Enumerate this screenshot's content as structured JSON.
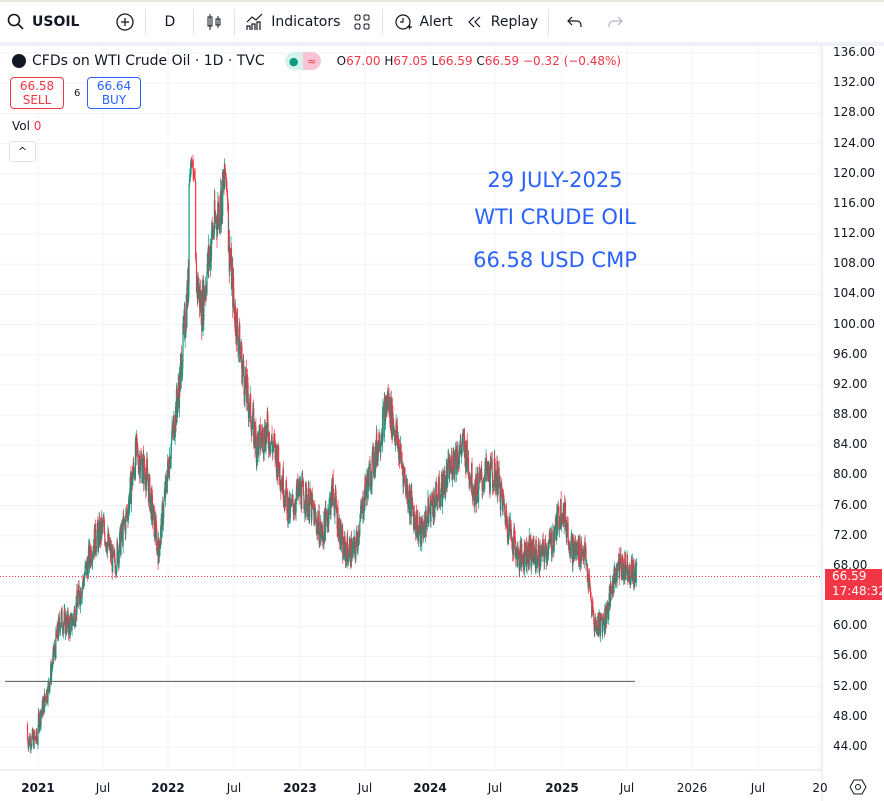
{
  "toolbar": {
    "symbol": "USOIL",
    "interval": "D",
    "indicators": "Indicators",
    "alert": "Alert",
    "replay": "Replay"
  },
  "legend": {
    "title": "CFDs on WTI Crude Oil · 1D · TVC",
    "o_label": "O",
    "o": "67.00",
    "h_label": "H",
    "h": "67.05",
    "l_label": "L",
    "l": "66.59",
    "c_label": "C",
    "c": "66.59",
    "change": "−0.32 (−0.48%)"
  },
  "trade": {
    "sell_price": "66.58",
    "sell_label": "SELL",
    "spread": "6",
    "buy_price": "66.64",
    "buy_label": "BUY"
  },
  "volume": {
    "label": "Vol",
    "value": "0"
  },
  "annotation": {
    "line1": "29 JULY-2025",
    "line2": "WTI CRUDE OIL",
    "line3": "66.58 USD CMP"
  },
  "price_axis": [
    "136.00",
    "132.00",
    "128.00",
    "124.00",
    "120.00",
    "116.00",
    "112.00",
    "108.00",
    "104.00",
    "100.00",
    "96.00",
    "92.00",
    "88.00",
    "84.00",
    "80.00",
    "76.00",
    "72.00",
    "68.00",
    "60.00",
    "56.00",
    "52.00",
    "48.00",
    "44.00"
  ],
  "time_axis": [
    "2021",
    "Jul",
    "2022",
    "Jul",
    "2023",
    "Jul",
    "2024",
    "Jul",
    "2025",
    "Jul",
    "2026",
    "Jul",
    "20"
  ],
  "last_price": {
    "value": "66.59",
    "countdown": "17:48:32"
  },
  "colors": {
    "up": "#089981",
    "down": "#f23645",
    "annotation": "#2962ff"
  },
  "chart_data": {
    "type": "candlestick",
    "ylim": [
      44,
      136
    ],
    "horizontal_line": 52.7,
    "monthly_close": [
      [
        2021.0,
        47
      ],
      [
        2021.08,
        52
      ],
      [
        2021.17,
        61
      ],
      [
        2021.25,
        60
      ],
      [
        2021.33,
        65
      ],
      [
        2021.42,
        71
      ],
      [
        2021.5,
        73
      ],
      [
        2021.58,
        68
      ],
      [
        2021.67,
        74
      ],
      [
        2021.75,
        83
      ],
      [
        2021.83,
        80
      ],
      [
        2021.92,
        70
      ],
      [
        2022.0,
        82
      ],
      [
        2022.08,
        92
      ],
      [
        2022.17,
        110
      ],
      [
        2022.25,
        102
      ],
      [
        2022.33,
        112
      ],
      [
        2022.42,
        118
      ],
      [
        2022.5,
        102
      ],
      [
        2022.58,
        92
      ],
      [
        2022.67,
        84
      ],
      [
        2022.75,
        86
      ],
      [
        2022.83,
        82
      ],
      [
        2022.92,
        75
      ],
      [
        2023.0,
        78
      ],
      [
        2023.08,
        76
      ],
      [
        2023.17,
        72
      ],
      [
        2023.25,
        78
      ],
      [
        2023.33,
        70
      ],
      [
        2023.42,
        70
      ],
      [
        2023.5,
        78
      ],
      [
        2023.58,
        83
      ],
      [
        2023.67,
        90
      ],
      [
        2023.75,
        84
      ],
      [
        2023.83,
        77
      ],
      [
        2023.92,
        72
      ],
      [
        2024.0,
        76
      ],
      [
        2024.08,
        78
      ],
      [
        2024.17,
        82
      ],
      [
        2024.25,
        84
      ],
      [
        2024.33,
        78
      ],
      [
        2024.42,
        80
      ],
      [
        2024.5,
        80
      ],
      [
        2024.58,
        74
      ],
      [
        2024.67,
        69
      ],
      [
        2024.75,
        70
      ],
      [
        2024.83,
        69
      ],
      [
        2024.92,
        71
      ],
      [
        2025.0,
        76
      ],
      [
        2025.08,
        70
      ],
      [
        2025.17,
        70
      ],
      [
        2025.25,
        60
      ],
      [
        2025.33,
        61
      ],
      [
        2025.42,
        68
      ],
      [
        2025.5,
        68
      ],
      [
        2025.57,
        66.59
      ]
    ]
  }
}
